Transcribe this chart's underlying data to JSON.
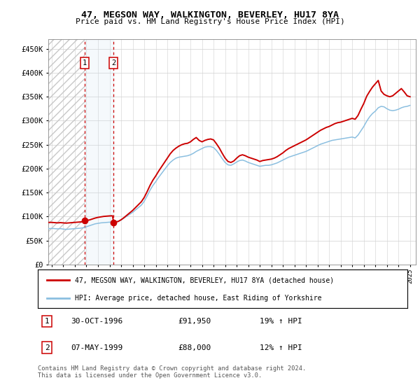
{
  "title": "47, MEGSON WAY, WALKINGTON, BEVERLEY, HU17 8YA",
  "subtitle": "Price paid vs. HM Land Registry's House Price Index (HPI)",
  "legend_line1": "47, MEGSON WAY, WALKINGTON, BEVERLEY, HU17 8YA (detached house)",
  "legend_line2": "HPI: Average price, detached house, East Riding of Yorkshire",
  "footnote": "Contains HM Land Registry data © Crown copyright and database right 2024.\nThis data is licensed under the Open Government Licence v3.0.",
  "transactions": [
    {
      "label": "1",
      "date": "30-OCT-1996",
      "price": 91950,
      "price_str": "£91,950",
      "pct": "19% ↑ HPI",
      "year": 1996.83
    },
    {
      "label": "2",
      "date": "07-MAY-1999",
      "price": 88000,
      "price_str": "£88,000",
      "pct": "12% ↑ HPI",
      "year": 1999.36
    }
  ],
  "hpi_color": "#8bbfe0",
  "price_color": "#cc0000",
  "transaction_dot_color": "#cc0000",
  "transaction_line_color": "#cc0000",
  "transaction_bg_color": "#ccdff0",
  "ylim": [
    0,
    470000
  ],
  "xlim_start": 1993.7,
  "xlim_end": 2025.5,
  "yticks": [
    0,
    50000,
    100000,
    150000,
    200000,
    250000,
    300000,
    350000,
    400000,
    450000
  ],
  "xticks": [
    1994,
    1995,
    1996,
    1997,
    1998,
    1999,
    2000,
    2001,
    2002,
    2003,
    2004,
    2005,
    2006,
    2007,
    2008,
    2009,
    2010,
    2011,
    2012,
    2013,
    2014,
    2015,
    2016,
    2017,
    2018,
    2019,
    2020,
    2021,
    2022,
    2023,
    2024,
    2025
  ],
  "hpi_data": [
    [
      1993.75,
      75000
    ],
    [
      1994.0,
      75500
    ],
    [
      1994.25,
      75000
    ],
    [
      1994.5,
      74500
    ],
    [
      1994.75,
      75000
    ],
    [
      1995.0,
      74000
    ],
    [
      1995.25,
      73500
    ],
    [
      1995.5,
      74000
    ],
    [
      1995.75,
      74500
    ],
    [
      1996.0,
      75000
    ],
    [
      1996.25,
      75500
    ],
    [
      1996.5,
      76000
    ],
    [
      1996.75,
      77000
    ],
    [
      1997.0,
      79000
    ],
    [
      1997.25,
      81000
    ],
    [
      1997.5,
      83000
    ],
    [
      1997.75,
      85000
    ],
    [
      1998.0,
      86000
    ],
    [
      1998.25,
      87000
    ],
    [
      1998.5,
      87500
    ],
    [
      1998.75,
      88000
    ],
    [
      1999.0,
      88500
    ],
    [
      1999.25,
      89000
    ],
    [
      1999.5,
      89500
    ],
    [
      1999.75,
      90500
    ],
    [
      2000.0,
      93000
    ],
    [
      2000.25,
      97000
    ],
    [
      2000.5,
      101000
    ],
    [
      2000.75,
      105000
    ],
    [
      2001.0,
      109000
    ],
    [
      2001.25,
      114000
    ],
    [
      2001.5,
      119000
    ],
    [
      2001.75,
      124000
    ],
    [
      2002.0,
      132000
    ],
    [
      2002.25,
      143000
    ],
    [
      2002.5,
      155000
    ],
    [
      2002.75,
      165000
    ],
    [
      2003.0,
      173000
    ],
    [
      2003.25,
      182000
    ],
    [
      2003.5,
      190000
    ],
    [
      2003.75,
      198000
    ],
    [
      2004.0,
      206000
    ],
    [
      2004.25,
      213000
    ],
    [
      2004.5,
      218000
    ],
    [
      2004.75,
      222000
    ],
    [
      2005.0,
      224000
    ],
    [
      2005.25,
      225000
    ],
    [
      2005.5,
      226000
    ],
    [
      2005.75,
      227000
    ],
    [
      2006.0,
      229000
    ],
    [
      2006.25,
      232000
    ],
    [
      2006.5,
      236000
    ],
    [
      2006.75,
      239000
    ],
    [
      2007.0,
      242000
    ],
    [
      2007.25,
      245000
    ],
    [
      2007.5,
      246000
    ],
    [
      2007.75,
      246000
    ],
    [
      2008.0,
      244000
    ],
    [
      2008.25,
      238000
    ],
    [
      2008.5,
      230000
    ],
    [
      2008.75,
      221000
    ],
    [
      2009.0,
      213000
    ],
    [
      2009.25,
      208000
    ],
    [
      2009.5,
      207000
    ],
    [
      2009.75,
      210000
    ],
    [
      2010.0,
      214000
    ],
    [
      2010.25,
      217000
    ],
    [
      2010.5,
      218000
    ],
    [
      2010.75,
      216000
    ],
    [
      2011.0,
      213000
    ],
    [
      2011.25,
      211000
    ],
    [
      2011.5,
      209000
    ],
    [
      2011.75,
      207000
    ],
    [
      2012.0,
      205000
    ],
    [
      2012.25,
      206000
    ],
    [
      2012.5,
      207000
    ],
    [
      2012.75,
      207000
    ],
    [
      2013.0,
      208000
    ],
    [
      2013.25,
      210000
    ],
    [
      2013.5,
      212000
    ],
    [
      2013.75,
      215000
    ],
    [
      2014.0,
      218000
    ],
    [
      2014.25,
      221000
    ],
    [
      2014.5,
      224000
    ],
    [
      2014.75,
      226000
    ],
    [
      2015.0,
      228000
    ],
    [
      2015.25,
      230000
    ],
    [
      2015.5,
      232000
    ],
    [
      2015.75,
      234000
    ],
    [
      2016.0,
      236000
    ],
    [
      2016.25,
      239000
    ],
    [
      2016.5,
      242000
    ],
    [
      2016.75,
      245000
    ],
    [
      2017.0,
      248000
    ],
    [
      2017.25,
      251000
    ],
    [
      2017.5,
      253000
    ],
    [
      2017.75,
      255000
    ],
    [
      2018.0,
      257000
    ],
    [
      2018.25,
      259000
    ],
    [
      2018.5,
      260000
    ],
    [
      2018.75,
      261000
    ],
    [
      2019.0,
      262000
    ],
    [
      2019.25,
      263000
    ],
    [
      2019.5,
      264000
    ],
    [
      2019.75,
      265000
    ],
    [
      2020.0,
      266000
    ],
    [
      2020.25,
      264000
    ],
    [
      2020.5,
      270000
    ],
    [
      2020.75,
      279000
    ],
    [
      2021.0,
      288000
    ],
    [
      2021.25,
      299000
    ],
    [
      2021.5,
      308000
    ],
    [
      2021.75,
      315000
    ],
    [
      2022.0,
      320000
    ],
    [
      2022.25,
      327000
    ],
    [
      2022.5,
      330000
    ],
    [
      2022.75,
      329000
    ],
    [
      2023.0,
      325000
    ],
    [
      2023.25,
      322000
    ],
    [
      2023.5,
      321000
    ],
    [
      2023.75,
      322000
    ],
    [
      2024.0,
      324000
    ],
    [
      2024.25,
      327000
    ],
    [
      2024.5,
      329000
    ],
    [
      2024.75,
      330000
    ],
    [
      2025.0,
      332000
    ]
  ],
  "price_data": [
    [
      1993.75,
      88000
    ],
    [
      1994.0,
      88000
    ],
    [
      1994.25,
      87500
    ],
    [
      1994.5,
      87000
    ],
    [
      1994.75,
      87500
    ],
    [
      1995.0,
      87000
    ],
    [
      1995.25,
      86500
    ],
    [
      1995.5,
      87000
    ],
    [
      1995.75,
      87500
    ],
    [
      1996.0,
      88000
    ],
    [
      1996.25,
      88500
    ],
    [
      1996.5,
      89000
    ],
    [
      1996.75,
      89500
    ],
    [
      1996.83,
      91950
    ],
    [
      1997.0,
      92000
    ],
    [
      1997.25,
      93000
    ],
    [
      1997.5,
      95000
    ],
    [
      1997.75,
      97000
    ],
    [
      1998.0,
      98500
    ],
    [
      1998.25,
      99500
    ],
    [
      1998.5,
      100500
    ],
    [
      1998.75,
      101000
    ],
    [
      1999.0,
      101500
    ],
    [
      1999.25,
      101800
    ],
    [
      1999.36,
      88000
    ],
    [
      1999.5,
      88500
    ],
    [
      1999.75,
      90000
    ],
    [
      2000.0,
      93500
    ],
    [
      2000.25,
      98000
    ],
    [
      2000.5,
      103000
    ],
    [
      2000.75,
      108000
    ],
    [
      2001.0,
      113000
    ],
    [
      2001.25,
      119000
    ],
    [
      2001.5,
      125000
    ],
    [
      2001.75,
      131000
    ],
    [
      2002.0,
      140000
    ],
    [
      2002.25,
      152000
    ],
    [
      2002.5,
      165000
    ],
    [
      2002.75,
      176000
    ],
    [
      2003.0,
      185000
    ],
    [
      2003.25,
      195000
    ],
    [
      2003.5,
      204000
    ],
    [
      2003.75,
      213000
    ],
    [
      2004.0,
      222000
    ],
    [
      2004.25,
      231000
    ],
    [
      2004.5,
      238000
    ],
    [
      2004.75,
      243000
    ],
    [
      2005.0,
      247000
    ],
    [
      2005.25,
      250000
    ],
    [
      2005.5,
      252000
    ],
    [
      2005.75,
      253000
    ],
    [
      2006.0,
      256000
    ],
    [
      2006.25,
      261000
    ],
    [
      2006.5,
      265000
    ],
    [
      2006.75,
      259000
    ],
    [
      2007.0,
      256000
    ],
    [
      2007.25,
      259000
    ],
    [
      2007.5,
      261000
    ],
    [
      2007.75,
      262000
    ],
    [
      2008.0,
      260000
    ],
    [
      2008.25,
      252000
    ],
    [
      2008.5,
      243000
    ],
    [
      2008.75,
      232000
    ],
    [
      2009.0,
      222000
    ],
    [
      2009.25,
      215000
    ],
    [
      2009.5,
      213000
    ],
    [
      2009.75,
      216000
    ],
    [
      2010.0,
      222000
    ],
    [
      2010.25,
      227000
    ],
    [
      2010.5,
      229000
    ],
    [
      2010.75,
      227000
    ],
    [
      2011.0,
      224000
    ],
    [
      2011.25,
      222000
    ],
    [
      2011.5,
      220000
    ],
    [
      2011.75,
      218000
    ],
    [
      2012.0,
      215000
    ],
    [
      2012.25,
      217000
    ],
    [
      2012.5,
      218000
    ],
    [
      2012.75,
      219000
    ],
    [
      2013.0,
      220000
    ],
    [
      2013.25,
      222000
    ],
    [
      2013.5,
      225000
    ],
    [
      2013.75,
      229000
    ],
    [
      2014.0,
      233000
    ],
    [
      2014.25,
      238000
    ],
    [
      2014.5,
      242000
    ],
    [
      2014.75,
      245000
    ],
    [
      2015.0,
      248000
    ],
    [
      2015.25,
      251000
    ],
    [
      2015.5,
      254000
    ],
    [
      2015.75,
      257000
    ],
    [
      2016.0,
      260000
    ],
    [
      2016.25,
      264000
    ],
    [
      2016.5,
      268000
    ],
    [
      2016.75,
      272000
    ],
    [
      2017.0,
      276000
    ],
    [
      2017.25,
      280000
    ],
    [
      2017.5,
      283000
    ],
    [
      2017.75,
      286000
    ],
    [
      2018.0,
      288000
    ],
    [
      2018.25,
      291000
    ],
    [
      2018.5,
      294000
    ],
    [
      2018.75,
      296000
    ],
    [
      2019.0,
      297000
    ],
    [
      2019.25,
      299000
    ],
    [
      2019.5,
      301000
    ],
    [
      2019.75,
      303000
    ],
    [
      2020.0,
      305000
    ],
    [
      2020.25,
      303000
    ],
    [
      2020.5,
      311000
    ],
    [
      2020.75,
      324000
    ],
    [
      2021.0,
      336000
    ],
    [
      2021.25,
      351000
    ],
    [
      2021.5,
      361000
    ],
    [
      2021.75,
      370000
    ],
    [
      2022.0,
      377000
    ],
    [
      2022.25,
      384000
    ],
    [
      2022.5,
      362000
    ],
    [
      2022.75,
      355000
    ],
    [
      2023.0,
      352000
    ],
    [
      2023.25,
      350000
    ],
    [
      2023.5,
      352000
    ],
    [
      2023.75,
      357000
    ],
    [
      2024.0,
      362000
    ],
    [
      2024.25,
      367000
    ],
    [
      2024.5,
      360000
    ],
    [
      2024.75,
      352000
    ],
    [
      2025.0,
      350000
    ]
  ]
}
